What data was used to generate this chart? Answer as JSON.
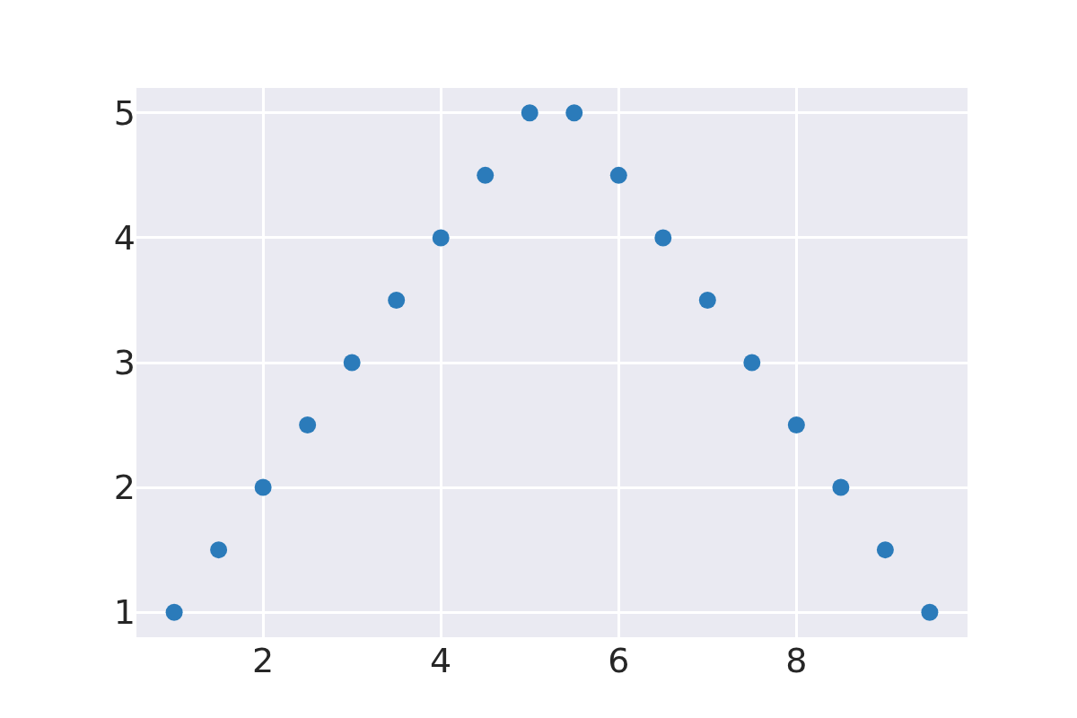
{
  "chart_data": {
    "type": "scatter",
    "x": [
      1,
      1.5,
      2,
      2.5,
      3,
      3.5,
      4,
      4.5,
      5,
      5.5,
      6,
      6.5,
      7,
      7.5,
      8,
      8.5,
      9,
      9.5
    ],
    "series": [
      {
        "color": "#2b7bba",
        "values": [
          1,
          1.5,
          2,
          2.5,
          3,
          3.5,
          4,
          4.5,
          5,
          5,
          4.5,
          4,
          3.5,
          3,
          2.5,
          2,
          1.5,
          1
        ]
      }
    ],
    "xlim": [
      0.575,
      9.925
    ],
    "ylim": [
      0.8,
      5.2
    ],
    "xticks": [
      2,
      4,
      6,
      8
    ],
    "yticks": [
      1,
      2,
      3,
      4,
      5
    ],
    "grid": true,
    "marker": "circle"
  }
}
